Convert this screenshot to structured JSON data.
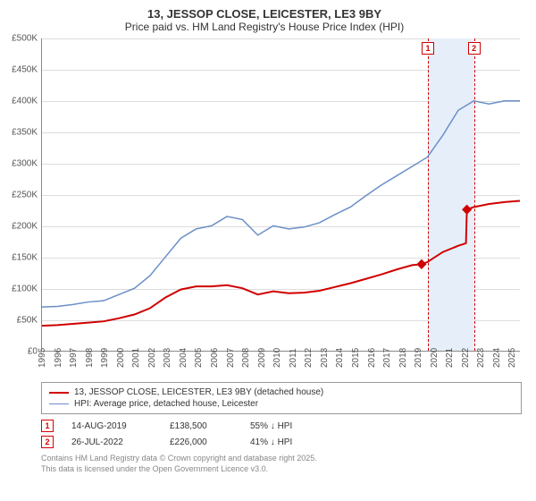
{
  "title": "13, JESSOP CLOSE, LEICESTER, LE3 9BY",
  "subtitle": "Price paid vs. HM Land Registry's House Price Index (HPI)",
  "chart": {
    "background_color": "#ffffff",
    "grid_color": "#dddddd",
    "axis_color": "#888888",
    "x": {
      "min": 1995,
      "max": 2026,
      "ticks": [
        1995,
        1996,
        1997,
        1998,
        1999,
        2000,
        2001,
        2002,
        2003,
        2004,
        2005,
        2006,
        2007,
        2008,
        2009,
        2010,
        2011,
        2012,
        2013,
        2014,
        2015,
        2016,
        2017,
        2018,
        2019,
        2020,
        2021,
        2022,
        2023,
        2024,
        2025
      ]
    },
    "y": {
      "min": 0,
      "max": 500000,
      "tick_step": 50000,
      "tick_labels": [
        "£0",
        "£50K",
        "£100K",
        "£150K",
        "£200K",
        "£250K",
        "£300K",
        "£350K",
        "£400K",
        "£450K",
        "£500K"
      ]
    },
    "band": {
      "from": 2019.62,
      "to": 2022.56,
      "color": "#e6eef9"
    },
    "vlines": [
      {
        "x": 2019.62,
        "color": "#d00000",
        "marker": "1"
      },
      {
        "x": 2022.56,
        "color": "#d00000",
        "marker": "2"
      }
    ],
    "series": [
      {
        "name": "hpi",
        "label": "HPI: Average price, detached house, Leicester",
        "color": "#6a8fc8",
        "width": 1.5,
        "points": [
          [
            1995,
            70000
          ],
          [
            1996,
            71000
          ],
          [
            1997,
            74000
          ],
          [
            1998,
            78000
          ],
          [
            1999,
            80000
          ],
          [
            2000,
            90000
          ],
          [
            2001,
            100000
          ],
          [
            2002,
            120000
          ],
          [
            2003,
            150000
          ],
          [
            2004,
            180000
          ],
          [
            2005,
            195000
          ],
          [
            2006,
            200000
          ],
          [
            2007,
            215000
          ],
          [
            2008,
            210000
          ],
          [
            2009,
            185000
          ],
          [
            2010,
            200000
          ],
          [
            2011,
            195000
          ],
          [
            2012,
            198000
          ],
          [
            2013,
            205000
          ],
          [
            2014,
            218000
          ],
          [
            2015,
            230000
          ],
          [
            2016,
            248000
          ],
          [
            2017,
            265000
          ],
          [
            2018,
            280000
          ],
          [
            2019,
            295000
          ],
          [
            2020,
            310000
          ],
          [
            2021,
            345000
          ],
          [
            2022,
            385000
          ],
          [
            2023,
            400000
          ],
          [
            2024,
            395000
          ],
          [
            2025,
            400000
          ],
          [
            2026,
            400000
          ]
        ]
      },
      {
        "name": "price_paid",
        "label": "13, JESSOP CLOSE, LEICESTER, LE3 9BY (detached house)",
        "color": "#d00000",
        "width": 2,
        "points": [
          [
            1995,
            40000
          ],
          [
            1996,
            41000
          ],
          [
            1997,
            43000
          ],
          [
            1998,
            45000
          ],
          [
            1999,
            47000
          ],
          [
            2000,
            52000
          ],
          [
            2001,
            58000
          ],
          [
            2002,
            68000
          ],
          [
            2003,
            85000
          ],
          [
            2004,
            98000
          ],
          [
            2005,
            103000
          ],
          [
            2006,
            103000
          ],
          [
            2007,
            105000
          ],
          [
            2008,
            100000
          ],
          [
            2009,
            90000
          ],
          [
            2010,
            95000
          ],
          [
            2011,
            92000
          ],
          [
            2012,
            93000
          ],
          [
            2013,
            96000
          ],
          [
            2014,
            102000
          ],
          [
            2015,
            108000
          ],
          [
            2016,
            115000
          ],
          [
            2017,
            122000
          ],
          [
            2018,
            130000
          ],
          [
            2019,
            137000
          ],
          [
            2019.62,
            138500
          ],
          [
            2020,
            142000
          ],
          [
            2021,
            158000
          ],
          [
            2022,
            168000
          ],
          [
            2022.5,
            172000
          ],
          [
            2022.56,
            226000
          ],
          [
            2023,
            230000
          ],
          [
            2024,
            235000
          ],
          [
            2025,
            238000
          ],
          [
            2026,
            240000
          ]
        ]
      }
    ],
    "sale_markers": [
      {
        "x": 2019.62,
        "y": 138500,
        "color": "#d00000"
      },
      {
        "x": 2022.56,
        "y": 226000,
        "color": "#d00000"
      }
    ]
  },
  "legend": {
    "items": [
      {
        "swatch_color": "#d00000",
        "swatch_width": 2,
        "label": "13, JESSOP CLOSE, LEICESTER, LE3 9BY (detached house)"
      },
      {
        "swatch_color": "#6a8fc8",
        "swatch_width": 1.5,
        "label": "HPI: Average price, detached house, Leicester"
      }
    ]
  },
  "sales": [
    {
      "marker": "1",
      "date": "14-AUG-2019",
      "price": "£138,500",
      "diff": "55% ↓ HPI"
    },
    {
      "marker": "2",
      "date": "26-JUL-2022",
      "price": "£226,000",
      "diff": "41% ↓ HPI"
    }
  ],
  "footnote_line1": "Contains HM Land Registry data © Crown copyright and database right 2025.",
  "footnote_line2": "This data is licensed under the Open Government Licence v3.0."
}
